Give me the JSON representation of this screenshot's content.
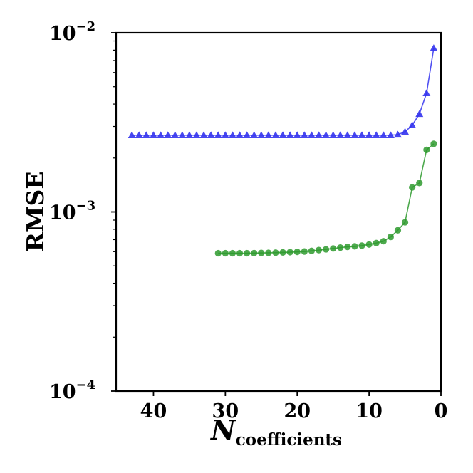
{
  "chart_data": {
    "type": "line",
    "xlabel": "N",
    "xlabel_subscript": "coefficients",
    "ylabel": "RMSE",
    "x_reversed": true,
    "xlim": [
      45.2,
      0
    ],
    "ylim": [
      0.0001,
      0.01
    ],
    "yscale": "log",
    "x_ticks": [
      40,
      30,
      20,
      10,
      0
    ],
    "y_ticks": [
      {
        "value": 0.0001,
        "base": "10",
        "exp": "−4"
      },
      {
        "value": 0.001,
        "base": "10",
        "exp": "−3"
      },
      {
        "value": 0.01,
        "base": "10",
        "exp": "−2"
      }
    ],
    "grid": false,
    "series": [
      {
        "color": "#3333ee",
        "marker": "triangle",
        "x": [
          43,
          42,
          41,
          40,
          39,
          38,
          37,
          36,
          35,
          34,
          33,
          32,
          31,
          30,
          29,
          28,
          27,
          26,
          25,
          24,
          23,
          22,
          21,
          20,
          19,
          18,
          17,
          16,
          15,
          14,
          13,
          12,
          11,
          10,
          9,
          8,
          7,
          6,
          5,
          4,
          3,
          2,
          1
        ],
        "y": [
          0.00268,
          0.00268,
          0.00268,
          0.00268,
          0.00268,
          0.00268,
          0.00268,
          0.00268,
          0.00268,
          0.00268,
          0.00268,
          0.00268,
          0.00268,
          0.00268,
          0.00268,
          0.00268,
          0.00268,
          0.00268,
          0.00268,
          0.00268,
          0.00268,
          0.00268,
          0.00268,
          0.00268,
          0.00268,
          0.00268,
          0.00268,
          0.00268,
          0.00268,
          0.00268,
          0.00268,
          0.00268,
          0.00268,
          0.00268,
          0.00268,
          0.00268,
          0.00268,
          0.0027,
          0.0028,
          0.00305,
          0.00352,
          0.0046,
          0.0082
        ]
      },
      {
        "color": "#2e9a2e",
        "marker": "circle",
        "x": [
          31,
          30,
          29,
          28,
          27,
          26,
          25,
          24,
          23,
          22,
          21,
          20,
          19,
          18,
          17,
          16,
          15,
          14,
          13,
          12,
          11,
          10,
          9,
          8,
          7,
          6,
          5,
          4,
          3,
          2,
          1
        ],
        "y": [
          0.000588,
          0.000588,
          0.000588,
          0.000588,
          0.000588,
          0.000589,
          0.00059,
          0.000591,
          0.000592,
          0.000594,
          0.000596,
          0.000598,
          0.000601,
          0.000606,
          0.000612,
          0.000618,
          0.000625,
          0.000632,
          0.000638,
          0.000642,
          0.000648,
          0.000658,
          0.00067,
          0.000686,
          0.000725,
          0.00079,
          0.000875,
          0.00137,
          0.00145,
          0.00222,
          0.0024
        ]
      }
    ]
  }
}
